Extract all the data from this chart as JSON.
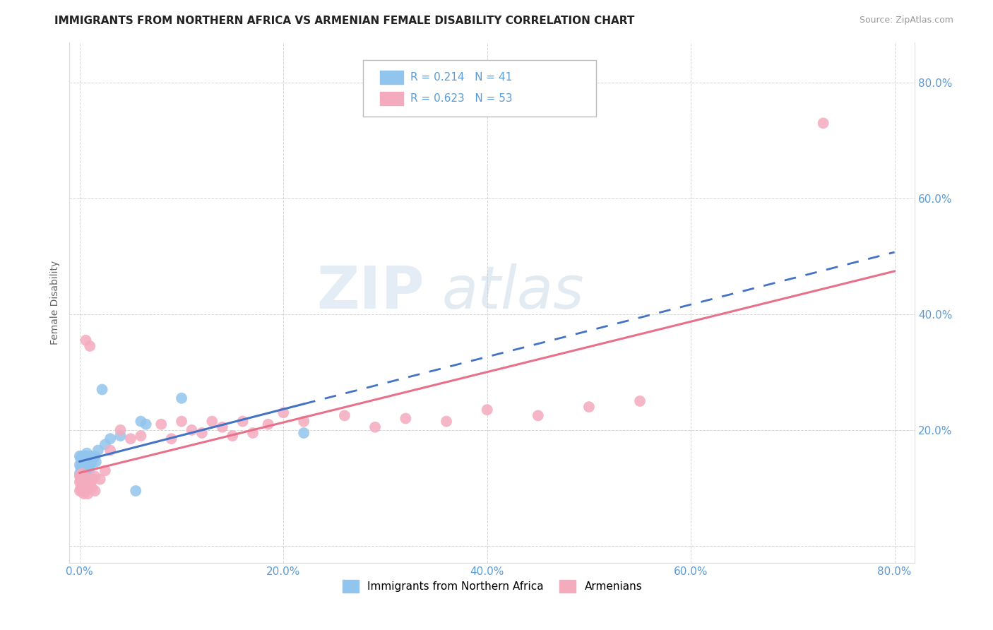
{
  "title": "IMMIGRANTS FROM NORTHERN AFRICA VS ARMENIAN FEMALE DISABILITY CORRELATION CHART",
  "source": "Source: ZipAtlas.com",
  "ylabel": "Female Disability",
  "xticks": [
    0.0,
    0.2,
    0.4,
    0.6,
    0.8
  ],
  "yticks": [
    0.0,
    0.2,
    0.4,
    0.6,
    0.8
  ],
  "xticklabels": [
    "0.0%",
    "20.0%",
    "40.0%",
    "60.0%",
    "80.0%"
  ],
  "yticklabels": [
    "",
    "20.0%",
    "40.0%",
    "60.0%",
    "80.0%"
  ],
  "blue_R": "0.214",
  "blue_N": "41",
  "pink_R": "0.623",
  "pink_N": "53",
  "blue_color": "#92C5ED",
  "pink_color": "#F4ABBE",
  "trendline_blue_color": "#4472C4",
  "trendline_pink_color": "#E8708A",
  "watermark_zip": "ZIP",
  "watermark_atlas": "atlas",
  "legend_label_blue": "Immigrants from Northern Africa",
  "legend_label_pink": "Armenians",
  "blue_x": [
    0.0,
    0.0,
    0.0,
    0.001,
    0.001,
    0.001,
    0.002,
    0.002,
    0.002,
    0.003,
    0.003,
    0.003,
    0.004,
    0.004,
    0.005,
    0.005,
    0.005,
    0.006,
    0.006,
    0.007,
    0.007,
    0.008,
    0.008,
    0.009,
    0.009,
    0.01,
    0.01,
    0.012,
    0.013,
    0.015,
    0.016,
    0.018,
    0.022,
    0.025,
    0.03,
    0.04,
    0.055,
    0.065,
    0.1,
    0.22,
    0.06
  ],
  "blue_y": [
    0.125,
    0.14,
    0.155,
    0.115,
    0.15,
    0.135,
    0.13,
    0.155,
    0.145,
    0.135,
    0.15,
    0.125,
    0.145,
    0.135,
    0.14,
    0.155,
    0.13,
    0.145,
    0.135,
    0.16,
    0.13,
    0.15,
    0.14,
    0.14,
    0.13,
    0.155,
    0.14,
    0.145,
    0.15,
    0.155,
    0.145,
    0.165,
    0.27,
    0.175,
    0.185,
    0.19,
    0.095,
    0.21,
    0.255,
    0.195,
    0.215
  ],
  "pink_x": [
    0.0,
    0.0,
    0.0,
    0.001,
    0.001,
    0.002,
    0.002,
    0.003,
    0.003,
    0.004,
    0.004,
    0.005,
    0.005,
    0.006,
    0.007,
    0.008,
    0.008,
    0.009,
    0.01,
    0.01,
    0.011,
    0.012,
    0.013,
    0.015,
    0.015,
    0.02,
    0.025,
    0.03,
    0.04,
    0.05,
    0.06,
    0.08,
    0.09,
    0.1,
    0.11,
    0.12,
    0.13,
    0.14,
    0.15,
    0.16,
    0.17,
    0.185,
    0.2,
    0.22,
    0.26,
    0.29,
    0.32,
    0.36,
    0.4,
    0.45,
    0.5,
    0.55,
    0.73
  ],
  "pink_y": [
    0.11,
    0.12,
    0.095,
    0.115,
    0.1,
    0.125,
    0.095,
    0.11,
    0.095,
    0.105,
    0.09,
    0.12,
    0.095,
    0.355,
    0.105,
    0.1,
    0.09,
    0.115,
    0.105,
    0.345,
    0.11,
    0.1,
    0.115,
    0.095,
    0.12,
    0.115,
    0.13,
    0.165,
    0.2,
    0.185,
    0.19,
    0.21,
    0.185,
    0.215,
    0.2,
    0.195,
    0.215,
    0.205,
    0.19,
    0.215,
    0.195,
    0.21,
    0.23,
    0.215,
    0.225,
    0.205,
    0.22,
    0.215,
    0.235,
    0.225,
    0.24,
    0.25,
    0.73
  ]
}
